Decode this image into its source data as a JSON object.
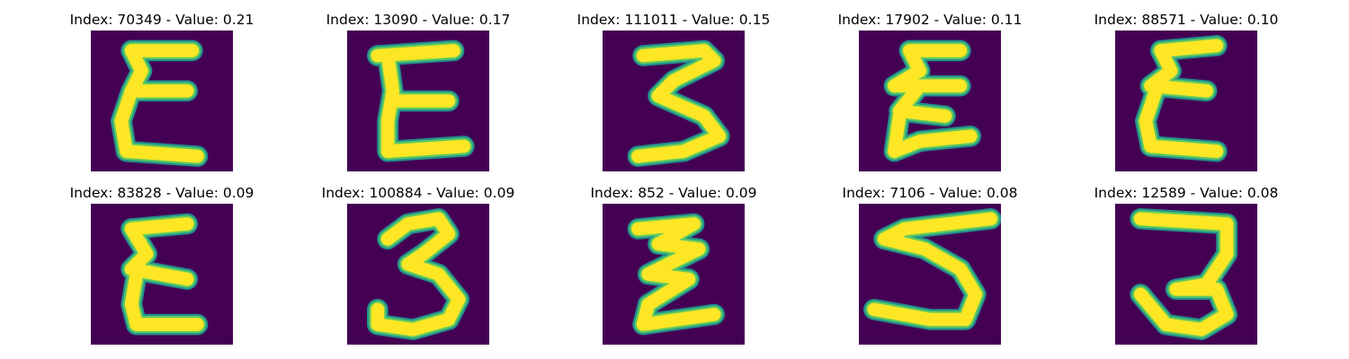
{
  "colors": {
    "background": "#440154",
    "stroke_edge": "#21918c",
    "stroke_mid": "#5ec962",
    "stroke": "#fde725"
  },
  "panels": [
    {
      "title": "Index: 70349 - Value: 0.21",
      "glyph": "epsilon"
    },
    {
      "title": "Index: 13090 - Value: 0.17",
      "glyph": "E"
    },
    {
      "title": "Index: 111011 - Value: 0.15",
      "glyph": "3"
    },
    {
      "title": "Index: 17902 - Value: 0.11",
      "glyph": "zigzag-epsilon"
    },
    {
      "title": "Index: 88571 - Value: 0.10",
      "glyph": "epsilon"
    },
    {
      "title": "Index: 83828 - Value: 0.09",
      "glyph": "epsilon"
    },
    {
      "title": "Index: 100884 - Value: 0.09",
      "glyph": "3"
    },
    {
      "title": "Index: 852 - Value: 0.09",
      "glyph": "zigzag-z"
    },
    {
      "title": "Index: 7106 - Value: 0.08",
      "glyph": "5"
    },
    {
      "title": "Index: 12589 - Value: 0.08",
      "glyph": "3"
    }
  ]
}
